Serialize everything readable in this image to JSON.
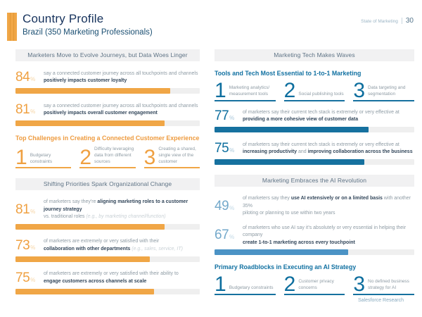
{
  "page": {
    "title": "Country Profile",
    "subtitle": "Brazil (350 Marketing Professionals)",
    "report_name": "State of Marketing",
    "page_number": "30",
    "footer": "Salesforce Research",
    "percent_sign": "%"
  },
  "colors": {
    "accent_orange": "#F0A646",
    "accent_blue": "#16719F",
    "accent_light_blue": "#4B93C5",
    "brand_navy": "#16325C",
    "header_bar_bg": "#F1F1F2",
    "bar_track": "#EFEFEF"
  },
  "left": {
    "section1_header": "Marketers Move to Evolve Journeys, but Data Woes Linger",
    "stats1": [
      {
        "value": 84,
        "segments": [
          {
            "t": "say a connected customer journey across all touchpoints and channels",
            "s": "n"
          },
          {
            "s": "br"
          },
          {
            "t": "positively impacts customer loyalty",
            "s": "b"
          }
        ]
      },
      {
        "value": 81,
        "segments": [
          {
            "t": "say a connected customer journey across all touchpoints and channels",
            "s": "n"
          },
          {
            "s": "br"
          },
          {
            "t": "positively impacts overall customer engagement",
            "s": "b"
          }
        ]
      }
    ],
    "challenges": {
      "heading": "Top Challenges in Creating a Connected Customer Experience",
      "items": [
        {
          "rank": "1",
          "label": "Budgetary constraints"
        },
        {
          "rank": "2",
          "label": "Difficulty leveraging data from different sources"
        },
        {
          "rank": "3",
          "label": "Creating a shared, single view of the customer"
        }
      ]
    },
    "section2_header": "Shifting Priorities Spark Organizational Change",
    "stats2": [
      {
        "value": 81,
        "segments": [
          {
            "t": "of marketers say they're ",
            "s": "n"
          },
          {
            "t": "aligning marketing roles to a customer journey strategy",
            "s": "b"
          },
          {
            "s": "br"
          },
          {
            "t": "vs. traditional roles ",
            "s": "n"
          },
          {
            "t": "(e.g., by marketing channel/function)",
            "s": "l"
          }
        ]
      },
      {
        "value": 73,
        "segments": [
          {
            "t": "of marketers are extremely or very satisfied with their",
            "s": "n"
          },
          {
            "s": "br"
          },
          {
            "t": "collaboration with other departments ",
            "s": "b"
          },
          {
            "t": "(e.g., sales, service, IT)",
            "s": "l"
          }
        ]
      },
      {
        "value": 75,
        "segments": [
          {
            "t": "of marketers are extremely or very satisfied with their ability to",
            "s": "n"
          },
          {
            "s": "br"
          },
          {
            "t": "engage customers across channels at scale",
            "s": "b"
          }
        ]
      }
    ]
  },
  "right": {
    "section1_header": "Marketing Tech Makes Waves",
    "tools": {
      "heading": "Tools and Tech Most Essential to 1-to-1 Marketing",
      "items": [
        {
          "rank": "1",
          "label": "Marketing analytics/ measurement tools"
        },
        {
          "rank": "2",
          "label": "Social publishing tools"
        },
        {
          "rank": "3",
          "label": "Data targeting and segmentation"
        }
      ]
    },
    "stats1": [
      {
        "value": 77,
        "segments": [
          {
            "t": "of marketers say their current tech stack is extremely or very effective at",
            "s": "n"
          },
          {
            "s": "br"
          },
          {
            "t": "providing a more cohesive view of customer data",
            "s": "b"
          }
        ]
      },
      {
        "value": 75,
        "segments": [
          {
            "t": "of marketers say their current tech stack is extremely or very effective at",
            "s": "n"
          },
          {
            "s": "br"
          },
          {
            "t": "increasing productivity",
            "s": "b"
          },
          {
            "t": " and ",
            "s": "n"
          },
          {
            "t": "improving collaboration across the business",
            "s": "b"
          }
        ]
      }
    ],
    "section2_header": "Marketing Embraces the AI Revolution",
    "stats2": [
      {
        "value": 49,
        "segments": [
          {
            "t": "of marketers say they ",
            "s": "n"
          },
          {
            "t": "use AI extensively or on a limited basis",
            "s": "b"
          },
          {
            "t": " with another 35%",
            "s": "n"
          },
          {
            "s": "br"
          },
          {
            "t": "piloting or planning to use within two years",
            "s": "n"
          }
        ]
      },
      {
        "value": 67,
        "segments": [
          {
            "t": "of marketers who use AI say it's absolutely or very essential in helping their company",
            "s": "n"
          },
          {
            "s": "br"
          },
          {
            "t": "create 1-to-1 marketing across every touchpoint",
            "s": "b"
          }
        ]
      }
    ],
    "roadblocks": {
      "heading": "Primary Roadblocks in Executing an AI Strategy",
      "items": [
        {
          "rank": "1",
          "label": "Budgetary constraints"
        },
        {
          "rank": "2",
          "label": "Customer privacy concerns"
        },
        {
          "rank": "3",
          "label": "No defined business strategy for AI"
        }
      ]
    }
  }
}
